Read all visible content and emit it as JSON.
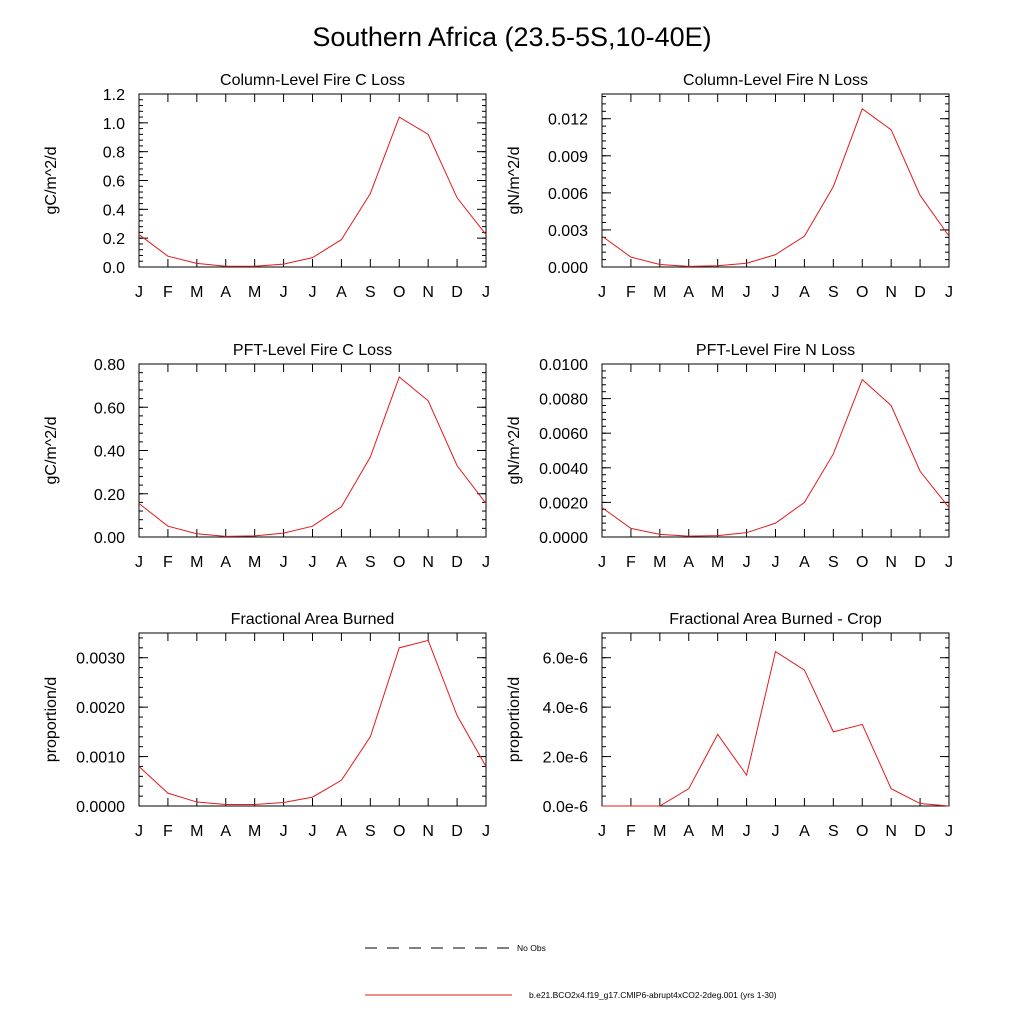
{
  "title": "Southern Africa (23.5-5S,10-40E)",
  "month_labels": [
    "J",
    "F",
    "M",
    "A",
    "M",
    "J",
    "J",
    "A",
    "S",
    "O",
    "N",
    "D",
    "J"
  ],
  "line_color": "#e31a1c",
  "legend": {
    "obs_label": "No Obs",
    "model_label": "b.e21.BCO2x4.f19_g17.CMIP6-abrupt4xCO2-2deg.001 (yrs 1-30)"
  },
  "chart_data": [
    {
      "type": "line",
      "title": "Column-Level Fire C Loss",
      "ylabel": "gC/m^2/d",
      "ylim": [
        0,
        1.2
      ],
      "yticks": [
        "0.0",
        "0.2",
        "0.4",
        "0.6",
        "0.8",
        "1.0",
        "1.2"
      ],
      "x": [
        "J",
        "F",
        "M",
        "A",
        "M",
        "J",
        "J",
        "A",
        "S",
        "O",
        "N",
        "D",
        "J"
      ],
      "values": [
        0.225,
        0.075,
        0.025,
        0.005,
        0.005,
        0.02,
        0.065,
        0.19,
        0.51,
        1.04,
        0.92,
        0.48,
        0.225
      ]
    },
    {
      "type": "line",
      "title": "Column-Level Fire N Loss",
      "ylabel": "gN/m^2/d",
      "ylim": [
        0,
        0.014
      ],
      "yticks": [
        "0.000",
        "0.003",
        "0.006",
        "0.009",
        "0.012"
      ],
      "x": [
        "J",
        "F",
        "M",
        "A",
        "M",
        "J",
        "J",
        "A",
        "S",
        "O",
        "N",
        "D",
        "J"
      ],
      "values": [
        0.0025,
        0.0008,
        0.0002,
        5e-05,
        0.0001,
        0.0003,
        0.001,
        0.0025,
        0.0065,
        0.0128,
        0.0111,
        0.0058,
        0.0025
      ]
    },
    {
      "type": "line",
      "title": "PFT-Level Fire C Loss",
      "ylabel": "gC/m^2/d",
      "ylim": [
        0,
        0.8
      ],
      "yticks": [
        "0.00",
        "0.20",
        "0.40",
        "0.60",
        "0.80"
      ],
      "x": [
        "J",
        "F",
        "M",
        "A",
        "M",
        "J",
        "J",
        "A",
        "S",
        "O",
        "N",
        "D",
        "J"
      ],
      "values": [
        0.155,
        0.05,
        0.015,
        0.003,
        0.005,
        0.018,
        0.05,
        0.14,
        0.37,
        0.74,
        0.63,
        0.33,
        0.155
      ]
    },
    {
      "type": "line",
      "title": "PFT-Level Fire N Loss",
      "ylabel": "gN/m^2/d",
      "ylim": [
        0,
        0.01
      ],
      "yticks": [
        "0.0000",
        "0.0020",
        "0.0040",
        "0.0060",
        "0.0080",
        "0.0100"
      ],
      "x": [
        "J",
        "F",
        "M",
        "A",
        "M",
        "J",
        "J",
        "A",
        "S",
        "O",
        "N",
        "D",
        "J"
      ],
      "values": [
        0.0017,
        0.0005,
        0.00015,
        5e-05,
        8e-05,
        0.00025,
        0.0008,
        0.002,
        0.0048,
        0.0091,
        0.0076,
        0.0038,
        0.0017
      ]
    },
    {
      "type": "line",
      "title": "Fractional Area Burned",
      "ylabel": "proportion/d",
      "ylim": [
        0,
        0.0035
      ],
      "yticks": [
        "0.0000",
        "0.0010",
        "0.0020",
        "0.0030"
      ],
      "x": [
        "J",
        "F",
        "M",
        "A",
        "M",
        "J",
        "J",
        "A",
        "S",
        "O",
        "N",
        "D",
        "J"
      ],
      "values": [
        0.0008,
        0.00026,
        8e-05,
        3e-05,
        3e-05,
        7e-05,
        0.00018,
        0.00052,
        0.0014,
        0.0032,
        0.00335,
        0.00183,
        0.0008
      ]
    },
    {
      "type": "line",
      "title": "Fractional Area Burned - Crop",
      "ylabel": "proportion/d",
      "ylim": [
        0,
        7e-06
      ],
      "yticks": [
        "0.0e-6",
        "2.0e-6",
        "4.0e-6",
        "6.0e-6"
      ],
      "x": [
        "J",
        "F",
        "M",
        "A",
        "M",
        "J",
        "J",
        "A",
        "S",
        "O",
        "N",
        "D",
        "J"
      ],
      "values": [
        0,
        0,
        0,
        7e-07,
        2.9e-06,
        1.25e-06,
        6.25e-06,
        5.5e-06,
        3e-06,
        3.3e-06,
        7e-07,
        1e-07,
        0
      ]
    }
  ]
}
